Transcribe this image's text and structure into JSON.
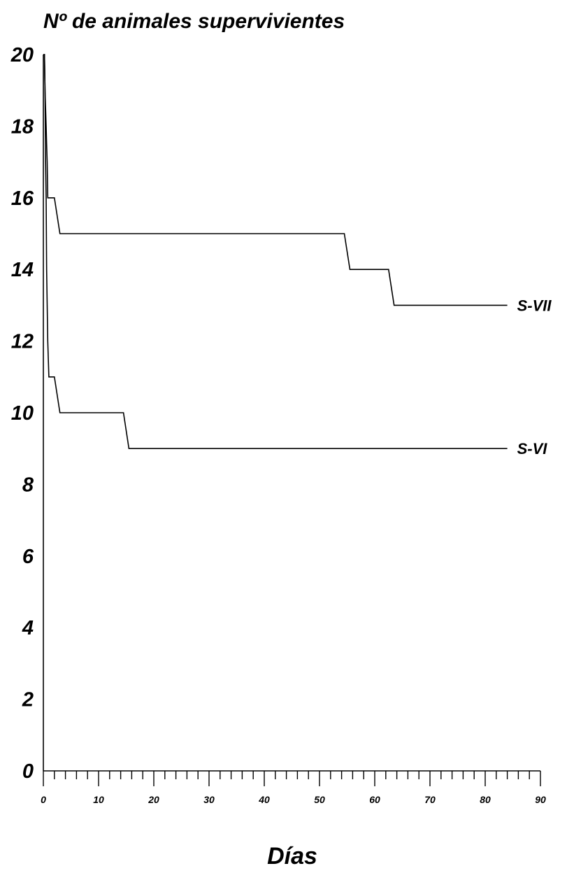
{
  "chart_data": {
    "type": "line",
    "title": "Nº de animales supervivientes",
    "xlabel": "Días",
    "ylabel": "",
    "xlim": [
      0,
      90
    ],
    "ylim": [
      0,
      20
    ],
    "xticks": [
      0,
      10,
      20,
      30,
      40,
      50,
      60,
      70,
      80,
      90
    ],
    "xminor_step": 2,
    "yticks": [
      0,
      2,
      4,
      6,
      8,
      10,
      12,
      14,
      16,
      18,
      20
    ],
    "grid": false,
    "legend": "none",
    "series": [
      {
        "name": "S-VII",
        "x": [
          0,
          0.2,
          0.3,
          0.4,
          0.5,
          0.6,
          0.7,
          0.8,
          1.0,
          2.0,
          3.0,
          54.5,
          55.5,
          62.5,
          63.5,
          84
        ],
        "y": [
          20,
          20,
          19,
          18.5,
          18,
          17.5,
          17,
          16,
          16,
          16,
          15,
          15,
          14,
          14,
          13,
          13
        ]
      },
      {
        "name": "S-VI",
        "x": [
          0,
          0.2,
          0.3,
          0.4,
          0.5,
          0.6,
          0.7,
          0.8,
          0.9,
          1.0,
          2.0,
          3.0,
          14.5,
          15.5,
          84
        ],
        "y": [
          20,
          20,
          19,
          17,
          16,
          14,
          13,
          12,
          11.5,
          11,
          11,
          10,
          10,
          9,
          9
        ]
      }
    ],
    "line_color": "#000000",
    "background": "#ffffff"
  }
}
